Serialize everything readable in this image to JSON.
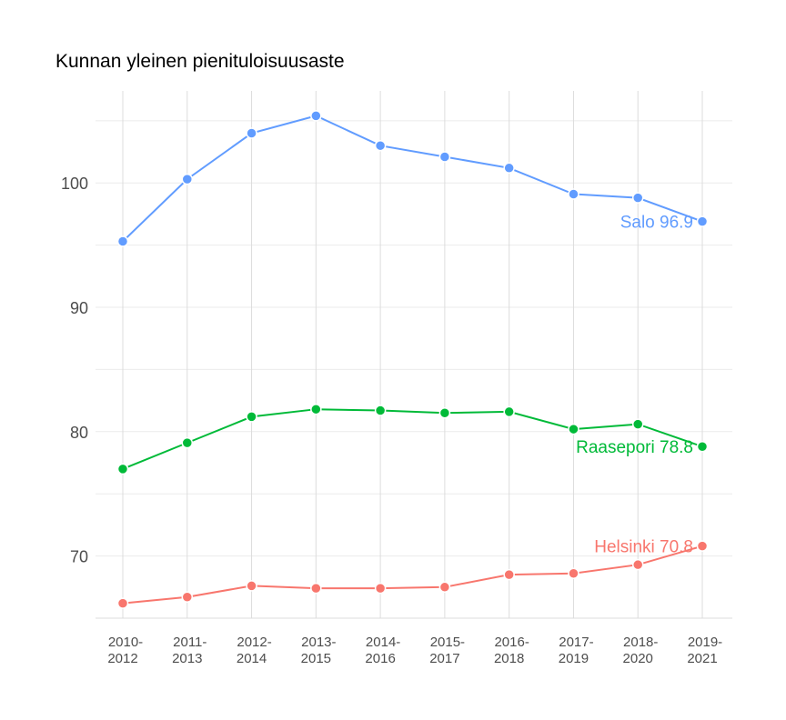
{
  "chart_data": {
    "type": "line",
    "title": "Kunnan yleinen pienituloisuusaste",
    "xlabel": "",
    "ylabel": "",
    "categories": [
      "2010-2012",
      "2011-2013",
      "2012-2014",
      "2013-2015",
      "2014-2016",
      "2015-2017",
      "2016-2018",
      "2017-2019",
      "2018-2020",
      "2019-2021"
    ],
    "ylim": [
      65,
      107.4
    ],
    "yticks": [
      70,
      80,
      90,
      100
    ],
    "grid": true,
    "legend": "none",
    "series": [
      {
        "name": "Salo",
        "color": "#619CFF",
        "end_label": "Salo 96.9",
        "values": [
          95.3,
          100.3,
          104.0,
          105.4,
          103.0,
          102.1,
          101.2,
          99.1,
          98.8,
          96.9
        ]
      },
      {
        "name": "Raasepori",
        "color": "#00BA38",
        "end_label": "Raasepori 78.8",
        "values": [
          77.0,
          79.1,
          81.2,
          81.8,
          81.7,
          81.5,
          81.6,
          80.2,
          80.6,
          78.8
        ]
      },
      {
        "name": "Helsinki",
        "color": "#F8766D",
        "end_label": "Helsinki 70.8",
        "values": [
          66.2,
          66.7,
          67.6,
          67.4,
          67.4,
          67.5,
          68.5,
          68.6,
          69.3,
          70.8
        ]
      }
    ]
  }
}
